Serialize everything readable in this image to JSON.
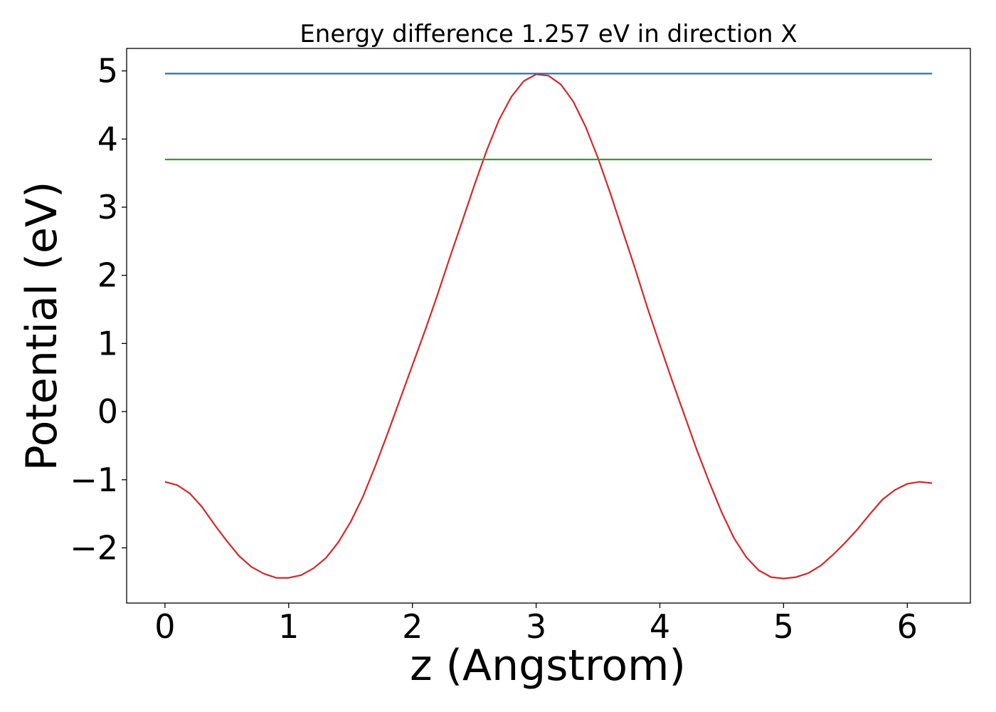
{
  "chart_data": {
    "type": "line",
    "title": "Energy difference 1.257 eV in direction X",
    "xlabel": "z (Angstrom)",
    "ylabel": "Potential (eV)",
    "xlim": [
      -0.31,
      6.51
    ],
    "ylim": [
      -2.81,
      5.33
    ],
    "grid": false,
    "x_ticks": [
      0,
      1,
      2,
      3,
      4,
      5,
      6
    ],
    "x_tick_labels": [
      "0",
      "1",
      "2",
      "3",
      "4",
      "5",
      "6"
    ],
    "y_ticks": [
      -2,
      -1,
      0,
      1,
      2,
      3,
      4,
      5
    ],
    "y_tick_labels": [
      "−2",
      "−1",
      "0",
      "1",
      "2",
      "3",
      "4",
      "5"
    ],
    "series": [
      {
        "color": "#d62728",
        "x": [
          0,
          0.1,
          0.2,
          0.3,
          0.4,
          0.5,
          0.6,
          0.7,
          0.8,
          0.9,
          1.0,
          1.1,
          1.2,
          1.3,
          1.4,
          1.5,
          1.6,
          1.7,
          1.8,
          1.9,
          2.0,
          2.1,
          2.2,
          2.3,
          2.4,
          2.5,
          2.6,
          2.7,
          2.8,
          2.9,
          3.0,
          3.1,
          3.2,
          3.3,
          3.4,
          3.5,
          3.6,
          3.7,
          3.8,
          3.9,
          4.0,
          4.1,
          4.2,
          4.3,
          4.4,
          4.5,
          4.6,
          4.7,
          4.8,
          4.9,
          5.0,
          5.1,
          5.2,
          5.3,
          5.4,
          5.5,
          5.6,
          5.7,
          5.8,
          5.9,
          6.0,
          6.1,
          6.2
        ],
        "y": [
          -1.03,
          -1.08,
          -1.2,
          -1.4,
          -1.66,
          -1.9,
          -2.12,
          -2.28,
          -2.38,
          -2.44,
          -2.44,
          -2.4,
          -2.3,
          -2.15,
          -1.92,
          -1.62,
          -1.25,
          -0.8,
          -0.32,
          0.18,
          0.68,
          1.18,
          1.7,
          2.25,
          2.78,
          3.32,
          3.83,
          4.28,
          4.62,
          4.85,
          4.95,
          4.93,
          4.8,
          4.55,
          4.18,
          3.72,
          3.2,
          2.65,
          2.1,
          1.52,
          0.98,
          0.45,
          -0.06,
          -0.57,
          -1.04,
          -1.48,
          -1.86,
          -2.14,
          -2.33,
          -2.43,
          -2.45,
          -2.43,
          -2.37,
          -2.26,
          -2.1,
          -1.92,
          -1.72,
          -1.5,
          -1.29,
          -1.15,
          -1.06,
          -1.03,
          -1.05
        ]
      },
      {
        "color": "#1f77b4",
        "x": [
          0,
          6.2
        ],
        "y": [
          4.96,
          4.96
        ]
      },
      {
        "color": "#2ca02c",
        "x": [
          0,
          6.2
        ],
        "y": [
          3.7,
          3.7
        ]
      }
    ]
  }
}
